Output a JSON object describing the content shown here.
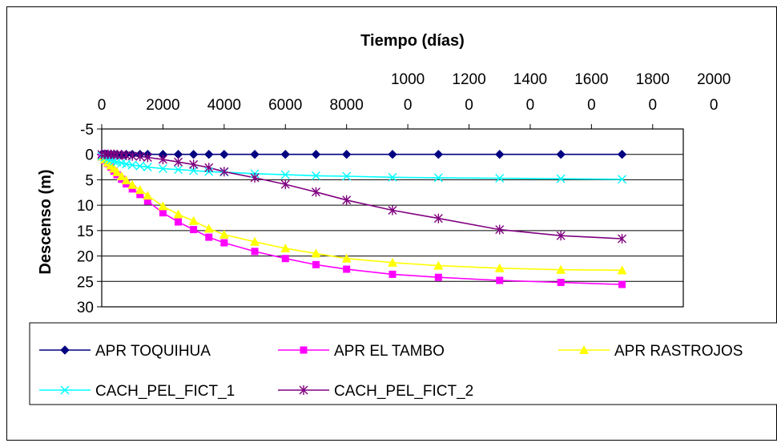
{
  "chart_data": {
    "type": "line",
    "title": "",
    "xlabel": "Tiempo (días)",
    "ylabel": "Descenso (m)",
    "x_tick_labels": [
      {
        "top": "",
        "bottom": "0"
      },
      {
        "top": "",
        "bottom": "2000"
      },
      {
        "top": "",
        "bottom": "4000"
      },
      {
        "top": "",
        "bottom": "6000"
      },
      {
        "top": "",
        "bottom": "8000"
      },
      {
        "top": "1000",
        "bottom": "0"
      },
      {
        "top": "1200",
        "bottom": "0"
      },
      {
        "top": "1400",
        "bottom": "0"
      },
      {
        "top": "1600",
        "bottom": "0"
      },
      {
        "top": "1800",
        "bottom": "0"
      },
      {
        "top": "2000",
        "bottom": "0"
      }
    ],
    "xlim": [
      0,
      20000
    ],
    "x_axis_position": "top",
    "y_tick_labels": [
      "-5",
      "0",
      "5",
      "10",
      "15",
      "20",
      "25",
      "30"
    ],
    "ylim": [
      -5,
      30
    ],
    "y_inverted": true,
    "grid": "horizontal",
    "legend_position": "bottom",
    "series": [
      {
        "name": "APR TOQUIHUA",
        "color": "#000080",
        "marker": "diamond",
        "x": [
          0,
          50,
          100,
          150,
          200,
          300,
          400,
          500,
          650,
          800,
          1000,
          1250,
          1500,
          2000,
          2500,
          3000,
          3500,
          4000,
          5000,
          6000,
          7000,
          8000,
          9500,
          11000,
          13000,
          15000,
          17000
        ],
        "y": [
          0,
          0,
          0,
          0,
          0,
          0,
          0,
          0,
          0,
          0,
          0,
          0,
          0,
          0,
          0,
          0,
          0,
          0,
          0,
          0,
          0,
          0,
          0,
          0,
          0,
          0,
          0
        ]
      },
      {
        "name": "APR EL TAMBO",
        "color": "#ff00ff",
        "marker": "square",
        "x": [
          0,
          100,
          200,
          300,
          400,
          500,
          650,
          800,
          1000,
          1250,
          1500,
          2000,
          2500,
          3000,
          3500,
          4000,
          5000,
          6000,
          7000,
          8000,
          9500,
          11000,
          13000,
          15000,
          17000
        ],
        "y": [
          0.5,
          1.2,
          1.8,
          2.5,
          3.3,
          4.0,
          4.9,
          5.8,
          6.8,
          7.9,
          9.2,
          11.5,
          13.3,
          14.8,
          16.3,
          17.4,
          19.1,
          20.5,
          21.7,
          22.6,
          23.6,
          24.2,
          24.8,
          25.2,
          25.6
        ]
      },
      {
        "name": "APR RASTROJOS",
        "color": "#ffff00",
        "marker": "triangle",
        "x": [
          0,
          100,
          200,
          300,
          400,
          500,
          650,
          800,
          1000,
          1250,
          1500,
          2000,
          2500,
          3000,
          3500,
          4000,
          5000,
          6000,
          7000,
          8000,
          9500,
          11000,
          13000,
          15000,
          17000
        ],
        "y": [
          0.4,
          1.0,
          1.6,
          2.2,
          2.8,
          3.5,
          4.3,
          5.1,
          6.0,
          7.0,
          8.1,
          10.2,
          11.8,
          13.1,
          14.6,
          15.8,
          17.2,
          18.5,
          19.5,
          20.5,
          21.3,
          21.9,
          22.4,
          22.7,
          22.8
        ]
      },
      {
        "name": "CACH_PEL_FICT_1",
        "color": "#00ffff",
        "marker": "x",
        "x": [
          0,
          100,
          200,
          300,
          400,
          500,
          650,
          800,
          1000,
          1250,
          1500,
          2000,
          2500,
          3000,
          3500,
          4000,
          5000,
          6000,
          7000,
          8000,
          9500,
          11000,
          13000,
          15000,
          17000
        ],
        "y": [
          0.3,
          0.6,
          0.9,
          1.1,
          1.3,
          1.5,
          1.7,
          1.9,
          2.1,
          2.3,
          2.5,
          2.8,
          3.0,
          3.2,
          3.4,
          3.5,
          3.8,
          4.0,
          4.2,
          4.3,
          4.5,
          4.6,
          4.7,
          4.8,
          4.9
        ]
      },
      {
        "name": "CACH_PEL_FICT_2",
        "color": "#800080",
        "marker": "star",
        "x": [
          0,
          100,
          200,
          300,
          400,
          500,
          650,
          800,
          1000,
          1250,
          1500,
          2000,
          2500,
          3000,
          3500,
          4000,
          5000,
          6000,
          7000,
          8000,
          9500,
          11000,
          13000,
          15000,
          17000
        ],
        "y": [
          0,
          0,
          0,
          0,
          0,
          0.1,
          0.1,
          0.2,
          0.3,
          0.4,
          0.6,
          1.0,
          1.5,
          2.0,
          2.6,
          3.4,
          4.6,
          5.9,
          7.4,
          9.0,
          11.0,
          12.6,
          14.8,
          16.0,
          16.6
        ]
      }
    ]
  }
}
